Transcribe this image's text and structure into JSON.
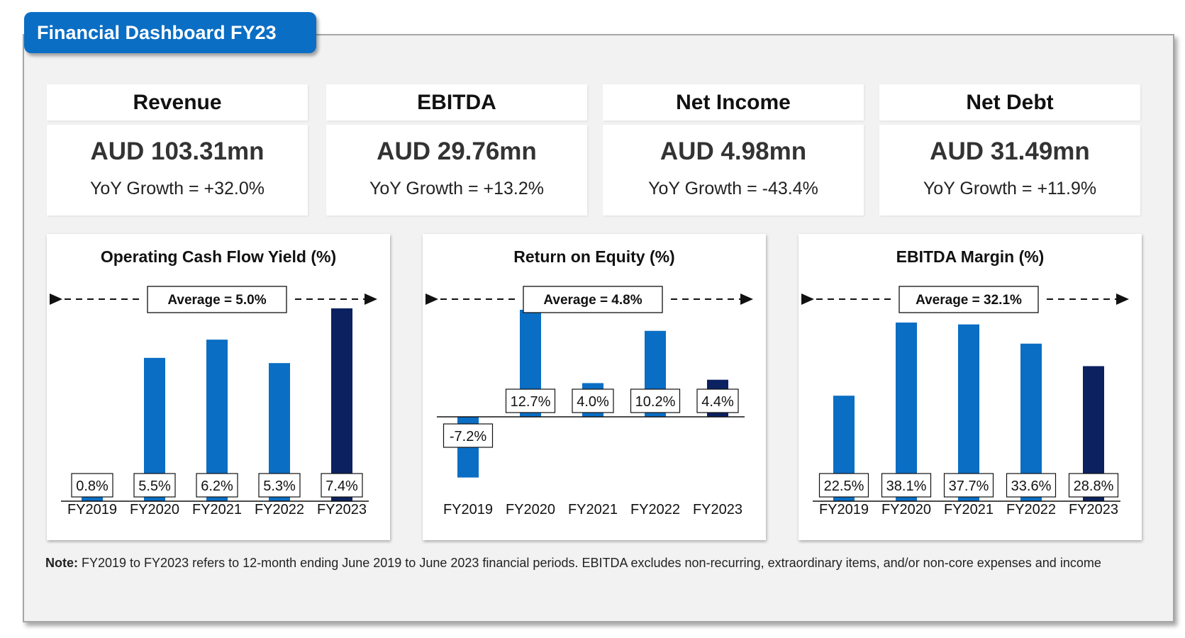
{
  "title": "Financial Dashboard FY23",
  "kpis": [
    {
      "label": "Revenue",
      "value": "AUD 103.31mn",
      "growth": "YoY Growth = +32.0%"
    },
    {
      "label": "EBITDA",
      "value": "AUD 29.76mn",
      "growth": "YoY Growth = +13.2%"
    },
    {
      "label": "Net Income",
      "value": "AUD 4.98mn",
      "growth": "YoY Growth = -43.4%"
    },
    {
      "label": "Net Debt",
      "value": "AUD 31.49mn",
      "growth": "YoY Growth = +11.9%"
    }
  ],
  "colors": {
    "bar": "#0a6ec4",
    "highlight": "#0b2160",
    "title_bg": "#0a6ec4"
  },
  "chart_data": [
    {
      "type": "bar",
      "title": "Operating Cash Flow Yield (%)",
      "average_label": "Average = 5.0%",
      "categories": [
        "FY2019",
        "FY2020",
        "FY2021",
        "FY2022",
        "FY2023"
      ],
      "values": [
        0.8,
        5.5,
        6.2,
        5.3,
        7.4
      ],
      "value_labels": [
        "0.8%",
        "5.5%",
        "6.2%",
        "5.3%",
        "7.4%"
      ],
      "highlight_last": true
    },
    {
      "type": "bar",
      "title": "Return on Equity (%)",
      "average_label": "Average = 4.8%",
      "categories": [
        "FY2019",
        "FY2020",
        "FY2021",
        "FY2022",
        "FY2023"
      ],
      "values": [
        -7.2,
        12.7,
        4.0,
        10.2,
        4.4
      ],
      "value_labels": [
        "-7.2%",
        "12.7%",
        "4.0%",
        "10.2%",
        "4.4%"
      ],
      "highlight_last": true
    },
    {
      "type": "bar",
      "title": "EBITDA Margin (%)",
      "average_label": "Average = 32.1%",
      "categories": [
        "FY2019",
        "FY2020",
        "FY2021",
        "FY2022",
        "FY2023"
      ],
      "values": [
        22.5,
        38.1,
        37.7,
        33.6,
        28.8
      ],
      "value_labels": [
        "22.5%",
        "38.1%",
        "37.7%",
        "33.6%",
        "28.8%"
      ],
      "highlight_last": true
    }
  ],
  "note": {
    "label": "Note:",
    "text": " FY2019 to FY2023 refers to 12-month ending June 2019 to June 2023 financial periods. EBITDA excludes non-recurring, extraordinary items, and/or non-core expenses and income"
  }
}
